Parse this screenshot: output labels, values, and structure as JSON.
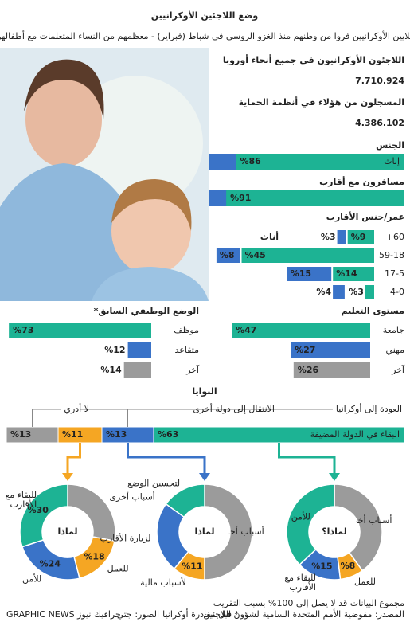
{
  "header": {
    "title": "وضع اللاجئين الأوكرانيين",
    "subtitle": "ملايين الأوكرانيين فروا من وطنهم منذ الغزو الروسي في شباط (فبراير) - معظمهم من النساء المتعلمات مع أطفالهن"
  },
  "stats": [
    {
      "label": "اللاجئون الأوكرانيون في جميع أنحاء أوروبا",
      "value": "7.710.924",
      "color": "#2f6fc4"
    },
    {
      "label": "المسجلون من هؤلاء في أنظمة الحماية",
      "value": "4.386.102",
      "color": "#1db394"
    }
  ],
  "gender": {
    "title": "الجنس",
    "name": "إناث",
    "value": 86,
    "value_label": "%86",
    "color": "#1db394",
    "track": "#3a73c8"
  },
  "relatives": {
    "title": "مسافرون مع أقارب",
    "value": 91,
    "value_label": "%91",
    "color": "#1db394",
    "track": "#3a73c8"
  },
  "age": {
    "title": "عمر/جنس الأقارب",
    "female_label": "أناث",
    "female_color": "#1db394",
    "male_color": "#3a73c8",
    "groups": [
      "+60",
      "59-18",
      "17-5",
      "4-0"
    ],
    "female": [
      9,
      45,
      14,
      3
    ],
    "female_labels": [
      "%9",
      "%45",
      "%14",
      "%3"
    ],
    "male": [
      3,
      8,
      15,
      4
    ],
    "male_labels": [
      "%3",
      "%8",
      "%15",
      "%4"
    ]
  },
  "employment": {
    "title": "الوضع الوظيفي السابق*",
    "rows": [
      {
        "name": "موظف",
        "value": 73,
        "value_label": "%73",
        "color": "#1db394"
      },
      {
        "name": "متقاعد",
        "value": 12,
        "value_label": "%12",
        "color": "#3a73c8"
      },
      {
        "name": "آخر",
        "value": 14,
        "value_label": "%14",
        "color": "#9b9b9b"
      }
    ]
  },
  "education": {
    "title": "مستوى التعليم",
    "rows": [
      {
        "name": "جامعة",
        "value": 47,
        "value_label": "%47",
        "color": "#1db394"
      },
      {
        "name": "مهني",
        "value": 27,
        "value_label": "%27",
        "color": "#3a73c8"
      },
      {
        "name": "آخر",
        "value": 26,
        "value_label": "%26",
        "color": "#9b9b9b"
      }
    ]
  },
  "intentions": {
    "title": "النوايا",
    "segments": [
      {
        "name": "البقاء في الدولة المضيفة",
        "value": 63,
        "value_label": "%63",
        "color": "#1db394"
      },
      {
        "name": "العودة إلى أوكرانيا",
        "value": 13,
        "value_label": "%13",
        "color": "#3a73c8"
      },
      {
        "name": "الانتقال إلى دولة أخرى",
        "value": 11,
        "value_label": "%11",
        "color": "#f5a623"
      },
      {
        "name": "لا أدري",
        "value": 13,
        "value_label": "%13",
        "color": "#9b9b9b"
      }
    ]
  },
  "donuts": [
    {
      "center": "لماذا",
      "segments": [
        {
          "name": "أسباب أخرى",
          "value": 28,
          "color": "#9b9b9b"
        },
        {
          "name": "للعمل",
          "value": 18,
          "value_label": "%18",
          "color": "#f5a623"
        },
        {
          "name": "للأمن",
          "value": 24,
          "value_label": "%24",
          "color": "#3a73c8"
        },
        {
          "name": "للبقاء مع الأقارب",
          "value": 30,
          "value_label": "%30",
          "color": "#1db394"
        }
      ]
    },
    {
      "center": "لماذا",
      "segments": [
        {
          "name": "أسباب أخرى",
          "value": 50,
          "color": "#9b9b9b"
        },
        {
          "name": "لأسباب مالية",
          "value": 11,
          "value_label": "%11",
          "color": "#f5a623"
        },
        {
          "name": "لزيارة الأقارب",
          "value": 24,
          "color": "#3a73c8"
        },
        {
          "name": "لتحسين الوضع",
          "value": 15,
          "color": "#1db394"
        }
      ]
    },
    {
      "center": "لماذا؟",
      "segments": [
        {
          "name": "أسباب أخرى",
          "value": 40,
          "color": "#9b9b9b"
        },
        {
          "name": "للعمل",
          "value": 8,
          "value_label": "%8",
          "color": "#f5a623"
        },
        {
          "name": "للبقاء مع الأقارب",
          "value": 15,
          "value_label": "%15",
          "color": "#3a73c8"
        },
        {
          "name": "للأمن",
          "value": 37,
          "color": "#1db394"
        }
      ]
    }
  ],
  "footer": {
    "note": "مجموع البيانات قد لا يصل إلى 100% بسبب التقريب",
    "source": "المصدر: مفوضية الأمم المتحدة السامية لشؤون اللاجئين",
    "footnote": "* قبل مغادرة أوكرانيا",
    "photo": "الصور: جتي",
    "credit": "GRAPHIC NEWS جرافيك نيوز"
  }
}
